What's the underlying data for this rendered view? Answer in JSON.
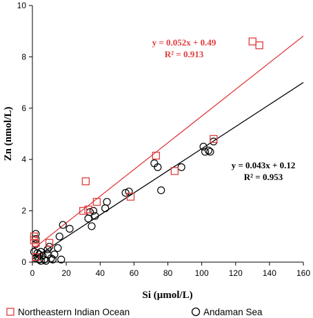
{
  "chart_data": {
    "type": "scatter",
    "xlabel": "Si (µmol/L)",
    "ylabel": "Zn (nmol/L)",
    "xlim": [
      0,
      160
    ],
    "ylim": [
      0,
      10
    ],
    "x_ticks": [
      "0",
      "20",
      "40",
      "60",
      "80",
      "100",
      "120",
      "140",
      "160"
    ],
    "y_ticks": [
      "0",
      "2",
      "4",
      "6",
      "8",
      "10"
    ],
    "grid": false,
    "legend_position": "bottom",
    "series": [
      {
        "name": "Northeastern Indian Ocean",
        "marker": "square",
        "color": "#e03c3c",
        "points": [
          [
            1,
            1.0
          ],
          [
            1,
            0.85
          ],
          [
            2,
            0.75
          ],
          [
            2,
            0.2
          ],
          [
            10,
            0.75
          ],
          [
            30,
            2.0
          ],
          [
            31.5,
            3.15
          ],
          [
            33,
            2.05
          ],
          [
            38,
            2.35
          ],
          [
            58,
            2.55
          ],
          [
            73,
            4.15
          ],
          [
            84,
            3.55
          ],
          [
            107,
            4.8
          ],
          [
            130,
            8.6
          ],
          [
            134,
            8.45
          ]
        ],
        "fit": {
          "slope": 0.052,
          "intercept": 0.49,
          "x_range": [
            0,
            160
          ]
        },
        "equation": "y = 0.052x + 0.49",
        "r2": "R² = 0.913"
      },
      {
        "name": "Andaman Sea",
        "marker": "circle",
        "color": "#000000",
        "points": [
          [
            1,
            0.4
          ],
          [
            2,
            0.9
          ],
          [
            2,
            0.7
          ],
          [
            2,
            0.15
          ],
          [
            2,
            1.1
          ],
          [
            3,
            0.35
          ],
          [
            3,
            0.2
          ],
          [
            4,
            0.3
          ],
          [
            4,
            0.1
          ],
          [
            5,
            0.05
          ],
          [
            5,
            0.4
          ],
          [
            6,
            0.25
          ],
          [
            7,
            0.1
          ],
          [
            8,
            0.05
          ],
          [
            9,
            0.3
          ],
          [
            9,
            0.5
          ],
          [
            10,
            0.6
          ],
          [
            11,
            0.15
          ],
          [
            12,
            0.1
          ],
          [
            13,
            0.3
          ],
          [
            15,
            0.55
          ],
          [
            16,
            1.0
          ],
          [
            17,
            0.1
          ],
          [
            18,
            1.45
          ],
          [
            22,
            1.3
          ],
          [
            33,
            1.7
          ],
          [
            34,
            1.95
          ],
          [
            35,
            1.4
          ],
          [
            36,
            2.0
          ],
          [
            37,
            1.8
          ],
          [
            43,
            2.1
          ],
          [
            44,
            2.35
          ],
          [
            55,
            2.7
          ],
          [
            57,
            2.75
          ],
          [
            72,
            3.85
          ],
          [
            74,
            3.7
          ],
          [
            76,
            2.8
          ],
          [
            88,
            3.7
          ],
          [
            101,
            4.5
          ],
          [
            102,
            4.3
          ],
          [
            104,
            4.35
          ],
          [
            105,
            4.3
          ],
          [
            107,
            4.7
          ]
        ],
        "fit": {
          "slope": 0.043,
          "intercept": 0.12,
          "x_range": [
            0,
            160
          ]
        },
        "equation": "y = 0.043x + 0.12",
        "r2": "R² = 0.953"
      }
    ]
  }
}
